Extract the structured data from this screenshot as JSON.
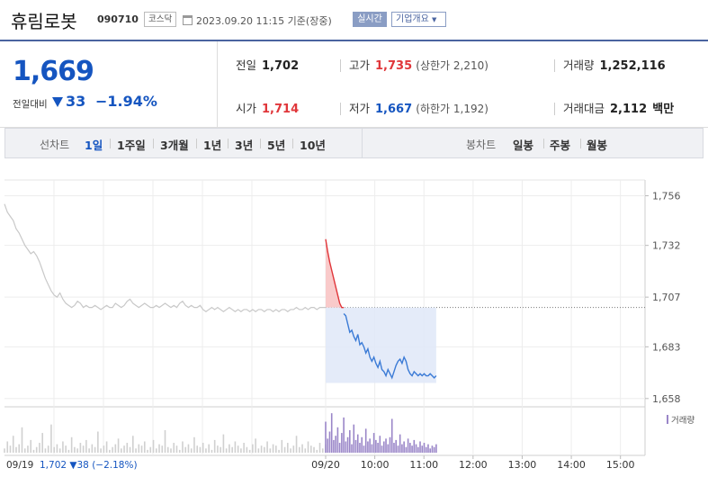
{
  "header": {
    "name": "휴림로봇",
    "code": "090710",
    "market": "코스닥",
    "timestamp": "2023.09.20 11:15 기준(장중)",
    "realtime": "실시간",
    "company_info": "기업개요",
    "company_caret": "▼"
  },
  "price": {
    "current": "1,669",
    "compare_label": "전일대비",
    "change": "33",
    "rate": "−1.94%",
    "direction": "down"
  },
  "stats": {
    "prev_label": "전일",
    "prev": "1,702",
    "high_label": "고가",
    "high": "1,735",
    "upper_limit": "(상한가 2,210)",
    "volume_label": "거래량",
    "volume": "1,252,116",
    "open_label": "시가",
    "open": "1,714",
    "low_label": "저가",
    "low": "1,667",
    "lower_limit": "(하한가 1,192)",
    "amount_label": "거래대금",
    "amount": "2,112",
    "amount_unit": "백만"
  },
  "tabs": {
    "line_label": "선차트",
    "line": [
      "1일",
      "1주일",
      "3개월",
      "1년",
      "3년",
      "5년",
      "10년"
    ],
    "active": "1일",
    "candle_label": "봉차트",
    "candle": [
      "일봉",
      "주봉",
      "월봉"
    ]
  },
  "colors": {
    "up": "#e0363a",
    "down": "#1555c0",
    "brand": "#4a64a0"
  },
  "chart_data": {
    "type": "line",
    "y_ticks": [
      "1,756",
      "1,732",
      "1,707",
      "1,683",
      "1,658"
    ],
    "y_values": [
      1756,
      1732,
      1707,
      1683,
      1658
    ],
    "ylim": [
      1654,
      1761
    ],
    "prev_close": 1702,
    "volume_legend": "거래량",
    "prev_day": {
      "label": "09/19",
      "close": "1,702",
      "change": "▼38",
      "rate": "(−2.18%)",
      "prices": [
        1752,
        1748,
        1746,
        1744,
        1740,
        1738,
        1735,
        1732,
        1730,
        1728,
        1729,
        1727,
        1724,
        1720,
        1716,
        1713,
        1710,
        1708,
        1707,
        1709,
        1706,
        1704,
        1703,
        1702,
        1703,
        1705,
        1704,
        1702,
        1703,
        1702,
        1702,
        1703,
        1702,
        1701,
        1702,
        1703,
        1702,
        1702,
        1704,
        1703,
        1702,
        1703,
        1705,
        1706,
        1704,
        1703,
        1702,
        1703,
        1704,
        1703,
        1702,
        1702,
        1703,
        1702,
        1703,
        1704,
        1703,
        1702,
        1703,
        1702,
        1704,
        1705,
        1703,
        1702,
        1703,
        1702,
        1702,
        1703,
        1701,
        1700,
        1701,
        1702,
        1701,
        1702,
        1701,
        1700,
        1701,
        1702,
        1701,
        1700,
        1701,
        1700,
        1701,
        1701,
        1700,
        1701,
        1700,
        1701,
        1701,
        1700,
        1701,
        1701,
        1700,
        1701,
        1700,
        1701,
        1701,
        1700,
        1701,
        1701,
        1702,
        1701,
        1701,
        1702,
        1701,
        1702,
        1702,
        1701,
        1702,
        1702,
        1702
      ]
    },
    "today": {
      "label": "09/20",
      "open": 1714,
      "prices": [
        1735,
        1729,
        1724,
        1720,
        1716,
        1712,
        1708,
        1704,
        1702,
        1699,
        1698,
        1694,
        1690,
        1691,
        1688,
        1686,
        1689,
        1684,
        1685,
        1683,
        1680,
        1682,
        1678,
        1676,
        1678,
        1675,
        1673,
        1676,
        1672,
        1671,
        1669,
        1672,
        1670,
        1668,
        1671,
        1674,
        1676,
        1677,
        1675,
        1678,
        1676,
        1672,
        1670,
        1669,
        1671,
        1670,
        1669,
        1670,
        1669,
        1670,
        1669,
        1669,
        1670,
        1669,
        1668,
        1669
      ]
    },
    "x_labels": [
      "09/19",
      "09/20",
      "10:00",
      "11:00",
      "12:00",
      "13:00",
      "14:00",
      "15:00"
    ],
    "prev_volume": [
      3,
      8,
      5,
      12,
      4,
      6,
      18,
      3,
      5,
      9,
      2,
      4,
      7,
      14,
      3,
      5,
      20,
      4,
      6,
      3,
      8,
      5,
      2,
      11,
      4,
      3,
      7,
      5,
      9,
      3,
      6,
      4,
      15,
      3,
      5,
      8,
      2,
      4,
      6,
      10,
      3,
      5,
      7,
      4,
      12,
      3,
      6,
      5,
      8,
      2,
      4,
      9,
      3,
      6,
      5,
      16,
      4,
      3,
      7,
      5,
      2,
      8,
      4,
      6,
      3,
      11,
      5,
      4,
      7,
      3,
      6,
      2,
      9,
      5,
      4,
      13,
      3,
      6,
      4,
      8,
      5,
      3,
      7,
      4,
      2,
      6,
      10,
      3,
      5,
      4,
      8,
      3,
      6,
      5,
      2,
      9,
      4,
      7,
      3,
      5,
      12,
      4,
      6,
      3,
      8,
      5,
      4,
      2,
      7,
      3,
      6
    ],
    "today_volume": [
      22,
      10,
      15,
      28,
      9,
      12,
      18,
      7,
      14,
      25,
      8,
      11,
      16,
      6,
      20,
      9,
      13,
      7,
      11,
      5,
      17,
      8,
      10,
      6,
      14,
      9,
      7,
      12,
      5,
      8,
      10,
      6,
      11,
      24,
      7,
      9,
      5,
      13,
      6,
      8,
      4,
      10,
      7,
      5,
      9,
      6,
      4,
      8,
      5,
      7,
      4,
      6,
      3,
      5,
      4,
      6
    ]
  }
}
